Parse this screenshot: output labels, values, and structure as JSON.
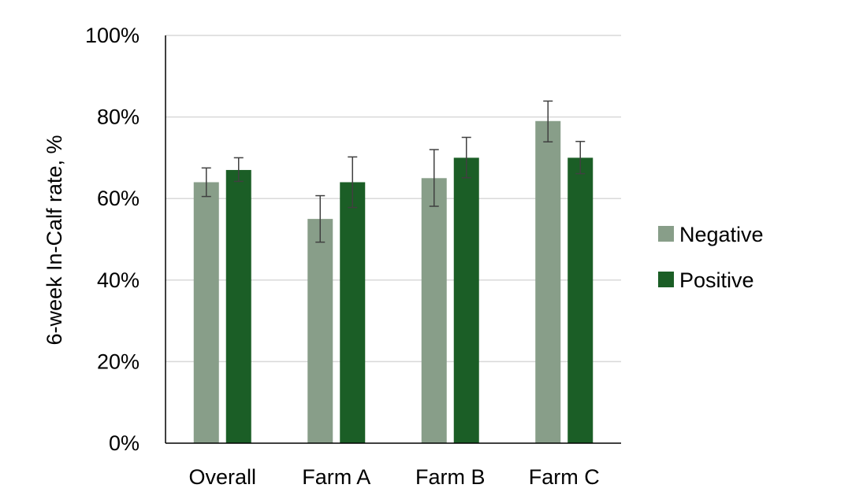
{
  "chart_data": {
    "type": "bar",
    "title": "",
    "xlabel": "",
    "ylabel": "6-week In-Calf rate, %",
    "ylim": [
      0,
      100
    ],
    "yticks": [
      0,
      20,
      40,
      60,
      80,
      100
    ],
    "ytick_labels": [
      "0%",
      "20%",
      "40%",
      "60%",
      "80%",
      "100%"
    ],
    "grid": true,
    "legend_position": "right",
    "categories": [
      "Overall",
      "Farm A",
      "Farm B",
      "Farm C"
    ],
    "series": [
      {
        "name": "Negative",
        "color": "#889e89",
        "values": [
          64,
          55,
          65,
          79
        ],
        "error_low": [
          60.5,
          49.3,
          58.1,
          73.9
        ],
        "error_high": [
          67.5,
          60.7,
          72,
          83.9
        ]
      },
      {
        "name": "Positive",
        "color": "#1b5e26",
        "values": [
          67,
          64,
          70,
          70
        ],
        "error_low": [
          64.2,
          57.8,
          65.1,
          66.1
        ],
        "error_high": [
          70,
          70.2,
          75,
          74
        ]
      }
    ]
  }
}
